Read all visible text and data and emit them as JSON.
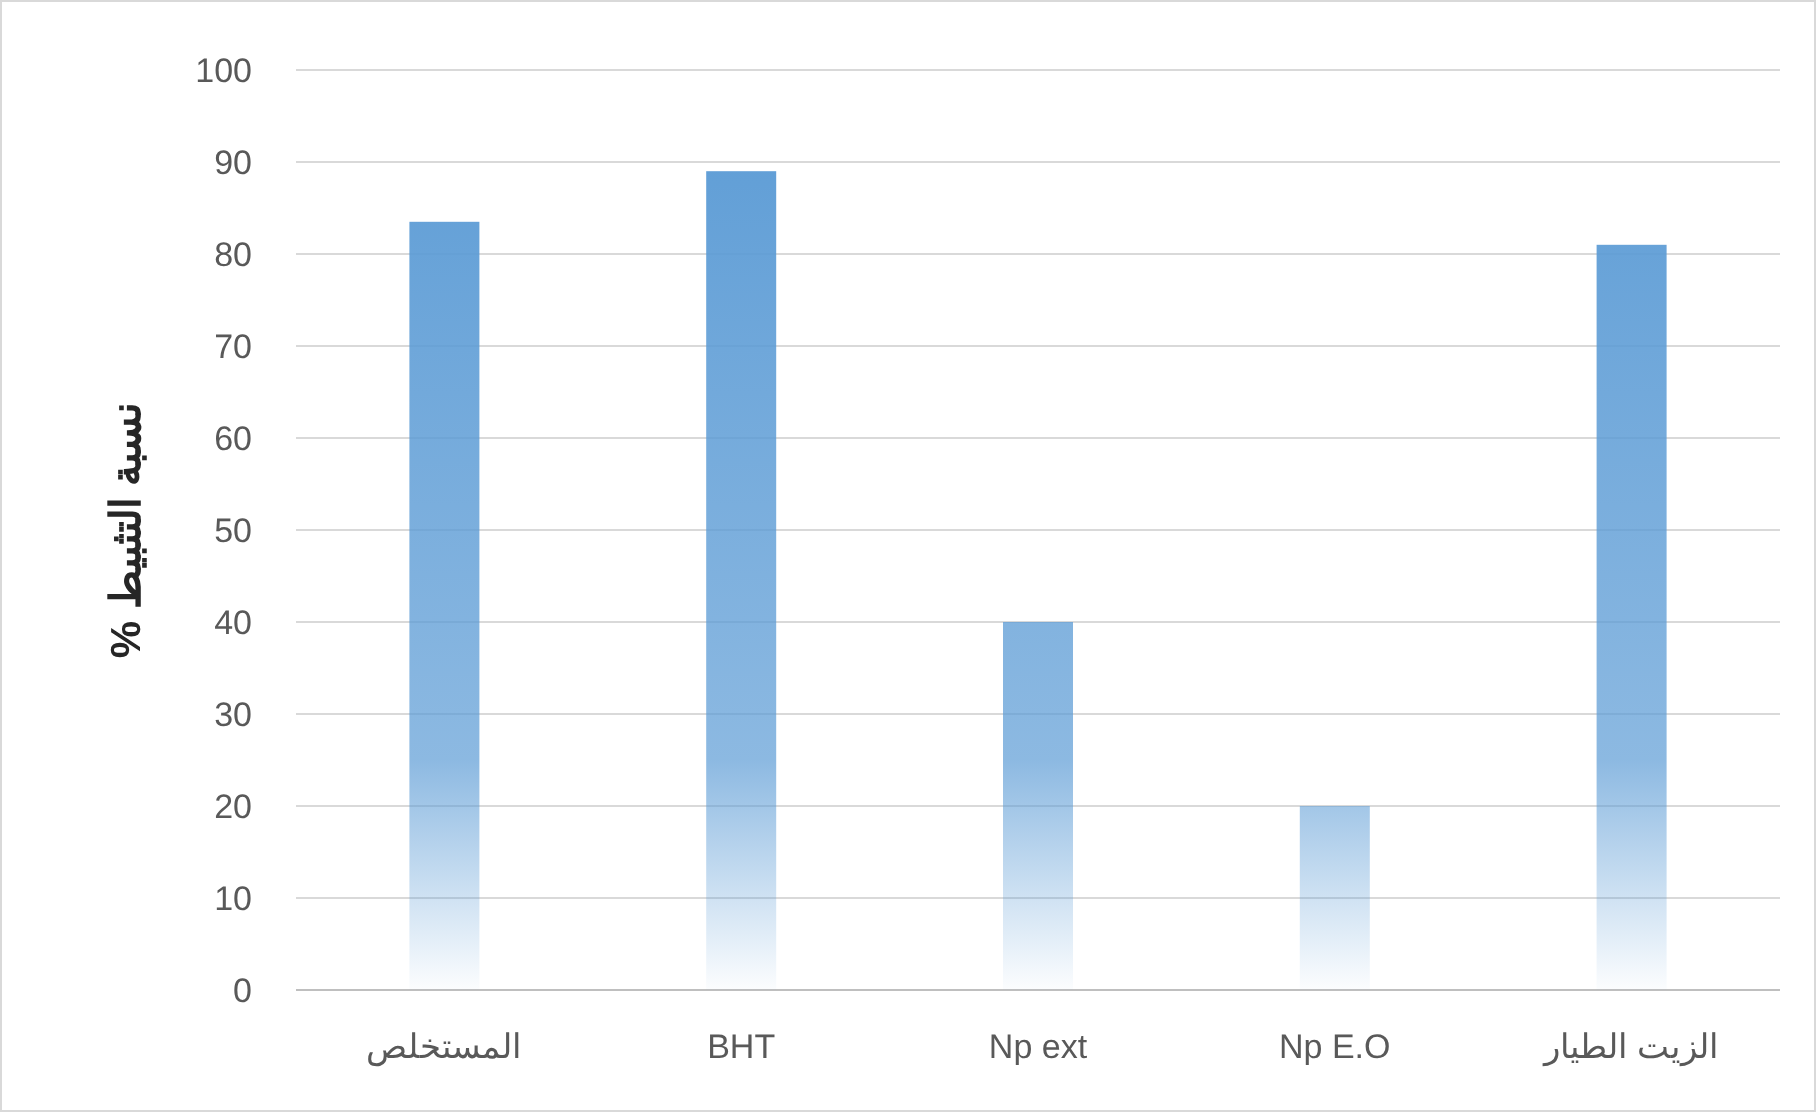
{
  "chart_data": {
    "type": "bar",
    "ylabel": "نسبة التثبيط %",
    "categories": [
      "المستخلص",
      "BHT",
      "Np ext",
      "Np E.O",
      "الزيت الطيار"
    ],
    "values": [
      83.5,
      89,
      40,
      20,
      81
    ],
    "color": "#5b9bd5",
    "ylim": [
      0,
      100
    ],
    "yticks": [
      0,
      10,
      20,
      30,
      40,
      50,
      60,
      70,
      80,
      90,
      100
    ],
    "grid": "y"
  }
}
